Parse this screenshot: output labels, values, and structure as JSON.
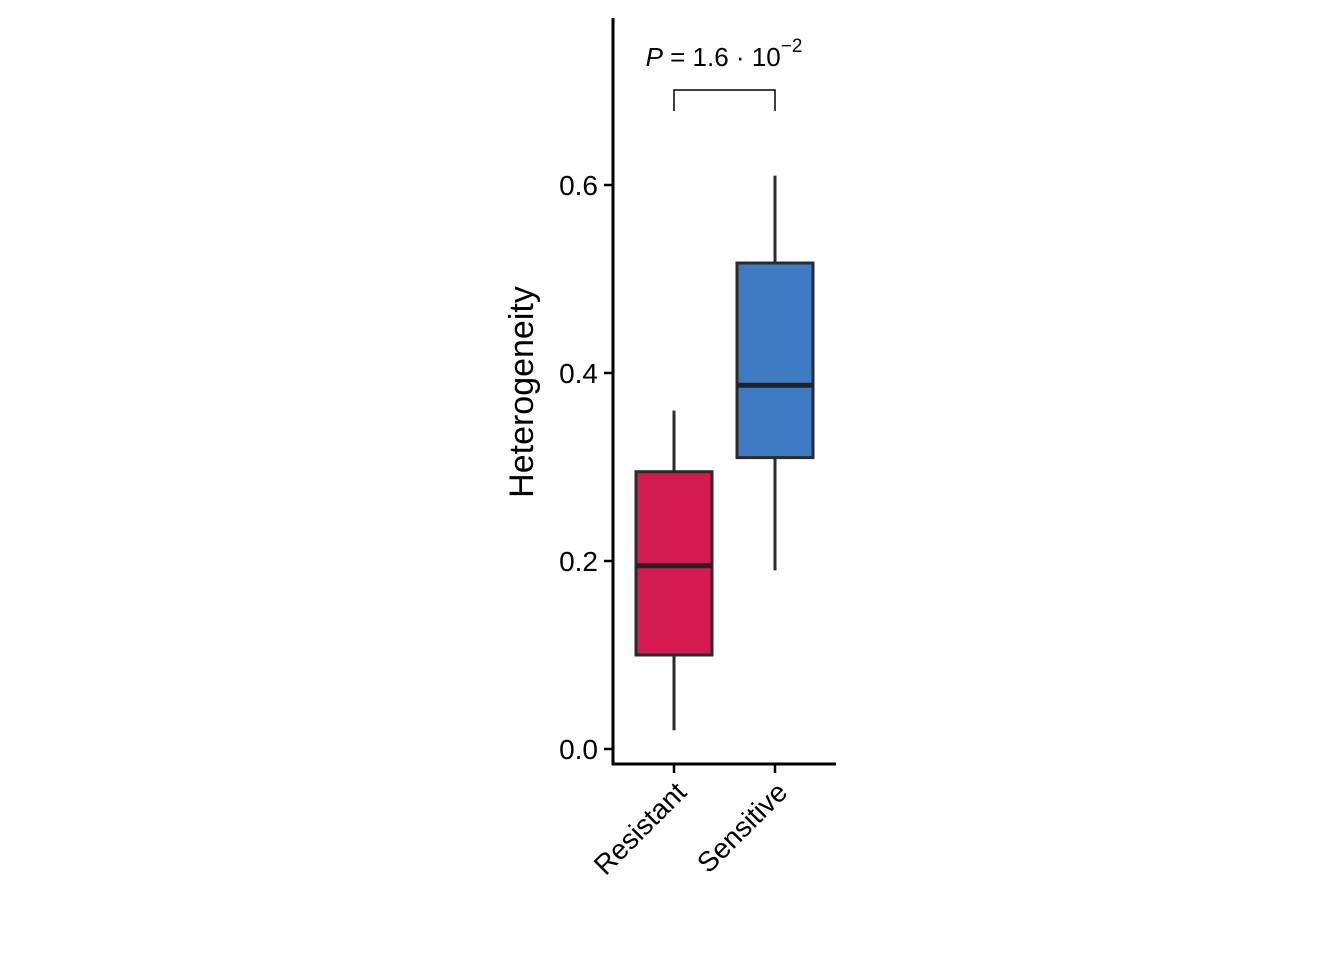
{
  "chart_data": {
    "type": "box",
    "ylabel": "Heterogeneity",
    "xlabel": "",
    "categories": [
      "Resistant",
      "Sensitive"
    ],
    "ylim": [
      -0.015,
      0.775
    ],
    "yticks": [
      "0.0",
      "0.2",
      "0.4",
      "0.6"
    ],
    "ytick_values": [
      0.0,
      0.2,
      0.4,
      0.6
    ],
    "grid": false,
    "legend": "none",
    "boxes": [
      {
        "category": "Resistant",
        "whisker_low": 0.02,
        "q1": 0.1,
        "median": 0.195,
        "q3": 0.295,
        "whisker_high": 0.36,
        "color": "#D41A51"
      },
      {
        "category": "Sensitive",
        "whisker_low": 0.19,
        "q1": 0.31,
        "median": 0.387,
        "q3": 0.517,
        "whisker_high": 0.61,
        "color": "#3F7BC3"
      }
    ],
    "comparison": {
      "groups": [
        "Resistant",
        "Sensitive"
      ],
      "p_symbol": "P",
      "p_equals": " = 1.6 · 10",
      "p_exponent": "−2"
    }
  }
}
